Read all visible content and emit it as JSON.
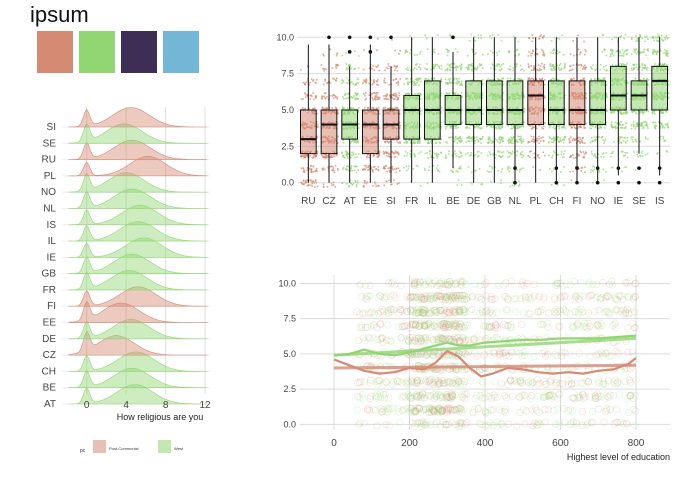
{
  "title": "ipsum",
  "palette": [
    {
      "name": "swatch-1",
      "color": "#D58A74"
    },
    {
      "name": "swatch-2",
      "color": "#91D673"
    },
    {
      "name": "swatch-3",
      "color": "#3E2D55"
    },
    {
      "name": "swatch-4",
      "color": "#73B6D5"
    }
  ],
  "colors": {
    "post_communist": "#D58A74",
    "west": "#91D673",
    "grid": "#dcdcdc"
  },
  "chart_data": [
    {
      "type": "area",
      "subtype": "ridgeline",
      "xlabel": "How religious are you",
      "ylabel": "",
      "xlim": [
        -2.5,
        12.5
      ],
      "xticks": [
        0,
        4,
        8,
        12
      ],
      "categories": [
        "SI",
        "SE",
        "RU",
        "PL",
        "NO",
        "NL",
        "IS",
        "IL",
        "IE",
        "GB",
        "FR",
        "FI",
        "EE",
        "DE",
        "CZ",
        "CH",
        "BE",
        "AT"
      ],
      "groups": {
        "SI": "Post-Communist",
        "SE": "West",
        "RU": "Post-Communist",
        "PL": "Post-Communist",
        "NO": "West",
        "NL": "West",
        "IS": "West",
        "IL": "West",
        "IE": "West",
        "GB": "West",
        "FR": "West",
        "FI": "Post-Communist",
        "EE": "Post-Communist",
        "DE": "West",
        "CZ": "Post-Communist",
        "CH": "West",
        "BE": "West",
        "AT": "West"
      },
      "means": {
        "SI": 4.5,
        "SE": 3.8,
        "RU": 4.6,
        "PL": 6.2,
        "NO": 4.0,
        "NL": 4.6,
        "IS": 5.4,
        "IL": 5.2,
        "IE": 5.8,
        "GB": 4.6,
        "FR": 4.3,
        "FI": 5.2,
        "EE": 3.5,
        "DE": 4.5,
        "CZ": 3.0,
        "CH": 5.0,
        "BE": 4.6,
        "AT": 4.9
      },
      "legend": {
        "title": "pc",
        "entries": [
          "Post-Communist",
          "West"
        ],
        "position": "bottom"
      }
    },
    {
      "type": "box",
      "categories": [
        "RU",
        "CZ",
        "AT",
        "EE",
        "SI",
        "FR",
        "IL",
        "BE",
        "DE",
        "GB",
        "NL",
        "PL",
        "CH",
        "FI",
        "NO",
        "IE",
        "SE",
        "IS"
      ],
      "groups": [
        "Post-Communist",
        "Post-Communist",
        "West",
        "Post-Communist",
        "Post-Communist",
        "West",
        "West",
        "West",
        "West",
        "West",
        "West",
        "Post-Communist",
        "West",
        "Post-Communist",
        "West",
        "West",
        "West",
        "West"
      ],
      "boxes": [
        {
          "q1": 2,
          "median": 3,
          "q3": 5
        },
        {
          "q1": 2,
          "median": 4,
          "q3": 5
        },
        {
          "q1": 3,
          "median": 4,
          "q3": 5
        },
        {
          "q1": 2,
          "median": 4,
          "q3": 5
        },
        {
          "q1": 3,
          "median": 4,
          "q3": 5
        },
        {
          "q1": 3,
          "median": 5,
          "q3": 6
        },
        {
          "q1": 3,
          "median": 5,
          "q3": 7
        },
        {
          "q1": 4,
          "median": 5,
          "q3": 6
        },
        {
          "q1": 4,
          "median": 5,
          "q3": 7
        },
        {
          "q1": 4,
          "median": 5,
          "q3": 7
        },
        {
          "q1": 4,
          "median": 5,
          "q3": 7
        },
        {
          "q1": 4,
          "median": 6,
          "q3": 7
        },
        {
          "q1": 4,
          "median": 5,
          "q3": 7
        },
        {
          "q1": 4,
          "median": 5,
          "q3": 7
        },
        {
          "q1": 4,
          "median": 5,
          "q3": 7
        },
        {
          "q1": 5,
          "median": 6,
          "q3": 8
        },
        {
          "q1": 5,
          "median": 6,
          "q3": 7
        },
        {
          "q1": 5,
          "median": 7,
          "q3": 8
        }
      ],
      "outliers": [
        [],
        [
          10
        ],
        [
          9,
          10
        ],
        [
          9,
          10
        ],
        [
          10
        ],
        [],
        [],
        [
          10
        ],
        [],
        [],
        [
          0,
          1
        ],
        [],
        [
          0,
          1
        ],
        [
          0,
          1
        ],
        [
          0,
          1
        ],
        [
          0,
          1
        ],
        [
          0,
          1
        ],
        [
          0,
          1
        ]
      ],
      "ylim": [
        -0.5,
        10.5
      ],
      "yticks": [
        0.0,
        2.5,
        5.0,
        7.5,
        10.0
      ],
      "xlabel": "",
      "ylabel": ""
    },
    {
      "type": "scatter",
      "xlabel": "Highest level of education",
      "ylabel": "",
      "xlim": [
        -90,
        890
      ],
      "ylim": [
        -0.4,
        10.6
      ],
      "xticks": [
        0,
        200,
        400,
        600,
        800
      ],
      "yticks": [
        0.0,
        2.5,
        5.0,
        7.5,
        10.0
      ],
      "series": [
        {
          "group": "Post-Communist",
          "smooth": [
            [
              0,
              4.6
            ],
            [
              40,
              4.2
            ],
            [
              80,
              3.8
            ],
            [
              120,
              3.6
            ],
            [
              160,
              3.7
            ],
            [
              200,
              4.0
            ],
            [
              240,
              3.9
            ],
            [
              270,
              4.4
            ],
            [
              300,
              5.2
            ],
            [
              330,
              4.8
            ],
            [
              360,
              4.0
            ],
            [
              390,
              3.4
            ],
            [
              420,
              3.6
            ],
            [
              460,
              4.0
            ],
            [
              500,
              3.9
            ],
            [
              540,
              3.7
            ],
            [
              580,
              3.6
            ],
            [
              620,
              3.7
            ],
            [
              660,
              3.6
            ],
            [
              700,
              3.8
            ],
            [
              740,
              3.9
            ],
            [
              780,
              4.3
            ],
            [
              800,
              4.7
            ]
          ],
          "fit": [
            [
              0,
              4.0
            ],
            [
              800,
              4.2
            ]
          ]
        },
        {
          "group": "West",
          "smooth": [
            [
              0,
              4.9
            ],
            [
              40,
              5.0
            ],
            [
              80,
              5.3
            ],
            [
              120,
              5.0
            ],
            [
              160,
              4.9
            ],
            [
              200,
              5.1
            ],
            [
              240,
              5.4
            ],
            [
              270,
              5.6
            ],
            [
              300,
              5.8
            ],
            [
              330,
              5.6
            ],
            [
              360,
              5.6
            ],
            [
              400,
              5.8
            ],
            [
              450,
              5.9
            ],
            [
              500,
              6.0
            ],
            [
              550,
              6.0
            ],
            [
              600,
              6.1
            ],
            [
              650,
              6.1
            ],
            [
              700,
              6.1
            ],
            [
              750,
              6.2
            ],
            [
              800,
              6.3
            ]
          ],
          "fit": [
            [
              0,
              4.9
            ],
            [
              800,
              6.1
            ]
          ]
        }
      ]
    }
  ]
}
